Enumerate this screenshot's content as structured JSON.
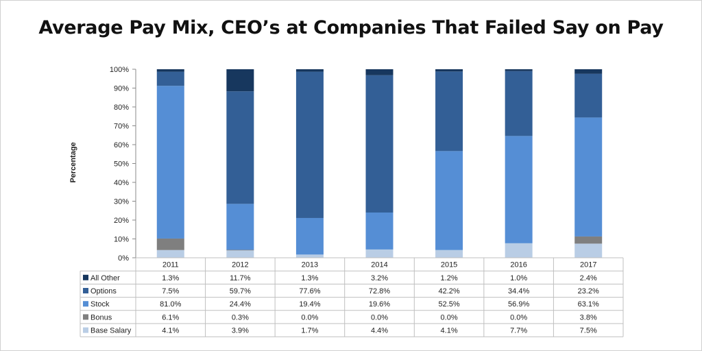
{
  "chart_data": {
    "type": "bar",
    "stacked": true,
    "percent_stacked": true,
    "title": "Average Pay Mix, CEO’s at Companies That Failed Say on Pay",
    "xlabel": "",
    "ylabel": "Percentage",
    "ylim": [
      0,
      100
    ],
    "yticks": [
      "0%",
      "10%",
      "20%",
      "30%",
      "40%",
      "50%",
      "60%",
      "70%",
      "80%",
      "90%",
      "100%"
    ],
    "categories": [
      "2011",
      "2012",
      "2013",
      "2014",
      "2015",
      "2016",
      "2017"
    ],
    "legend_placement": "data table (left)",
    "series": [
      {
        "name": "All Other",
        "color": "#17375e",
        "values": [
          1.3,
          11.7,
          1.3,
          3.2,
          1.2,
          1.0,
          2.4
        ],
        "labels": [
          "1.3%",
          "11.7%",
          "1.3%",
          "3.2%",
          "1.2%",
          "1.0%",
          "2.4%"
        ]
      },
      {
        "name": "Options",
        "color": "#335f96",
        "values": [
          7.5,
          59.7,
          77.6,
          72.8,
          42.2,
          34.4,
          23.2
        ],
        "labels": [
          "7.5%",
          "59.7%",
          "77.6%",
          "72.8%",
          "42.2%",
          "34.4%",
          "23.2%"
        ]
      },
      {
        "name": "Stock",
        "color": "#558ed5",
        "values": [
          81.0,
          24.4,
          19.4,
          19.6,
          52.5,
          56.9,
          63.1
        ],
        "labels": [
          "81.0%",
          "24.4%",
          "19.4%",
          "19.6%",
          "52.5%",
          "56.9%",
          "63.1%"
        ]
      },
      {
        "name": "Bonus",
        "color": "#7f7f7f",
        "values": [
          6.1,
          0.3,
          0.0,
          0.0,
          0.0,
          0.0,
          3.8
        ],
        "labels": [
          "6.1%",
          "0.3%",
          "0.0%",
          "0.0%",
          "0.0%",
          "0.0%",
          "3.8%"
        ]
      },
      {
        "name": "Base Salary",
        "color": "#b9cde5",
        "values": [
          4.1,
          3.9,
          1.7,
          4.4,
          4.1,
          7.7,
          7.5
        ],
        "labels": [
          "4.1%",
          "3.9%",
          "1.7%",
          "4.4%",
          "4.1%",
          "7.7%",
          "7.5%"
        ]
      }
    ]
  }
}
